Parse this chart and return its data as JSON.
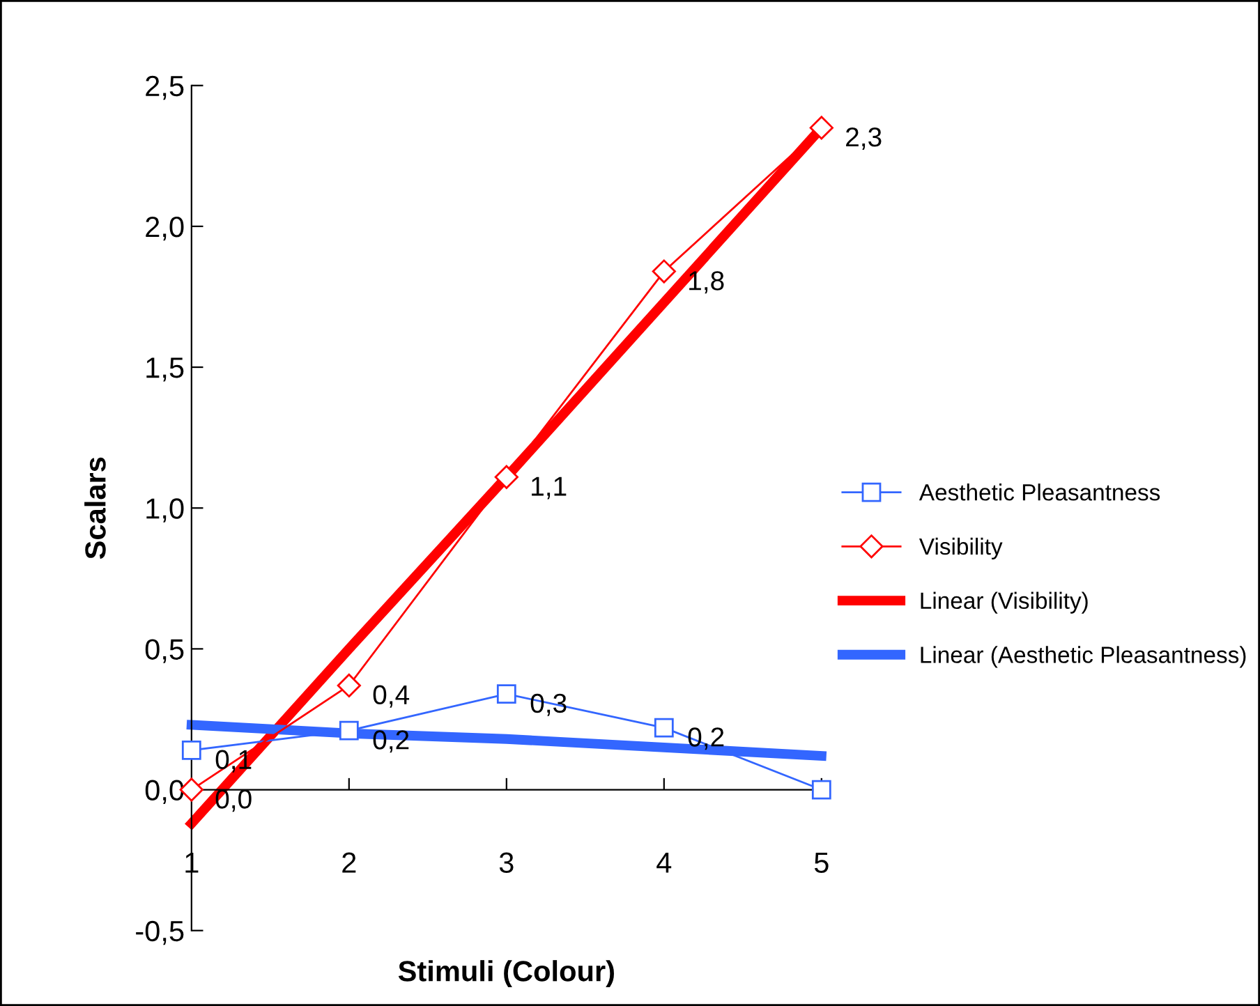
{
  "chart_data": {
    "type": "line",
    "xlabel": "Stimuli (Colour)",
    "ylabel": "Scalars",
    "x": [
      1,
      2,
      3,
      4,
      5
    ],
    "xlim": [
      1,
      5
    ],
    "xticks": [
      1,
      2,
      3,
      4,
      5
    ],
    "ylim": [
      -0.5,
      2.5
    ],
    "yticks": [
      {
        "value": -0.5,
        "label": "-0,5"
      },
      {
        "value": 0,
        "label": "0,0"
      },
      {
        "value": 0.5,
        "label": "0,5"
      },
      {
        "value": 1,
        "label": "1,0"
      },
      {
        "value": 1.5,
        "label": "1,5"
      },
      {
        "value": 2,
        "label": "2,0"
      },
      {
        "value": 2.5,
        "label": "2,5"
      }
    ],
    "legend": "right",
    "series": [
      {
        "name": "Aesthetic Pleasantness",
        "color": "#3366ff",
        "marker": "square",
        "values": [
          0.14,
          0.21,
          0.34,
          0.22,
          0.0
        ],
        "value_labels": [
          "0,1",
          "0,2",
          "0,3",
          "0,2",
          null
        ]
      },
      {
        "name": "Visibility",
        "color": "#ff0000",
        "marker": "diamond",
        "values": [
          0.0,
          0.37,
          1.11,
          1.84,
          2.35
        ],
        "value_labels": [
          "0,0",
          "0,4",
          "1,1",
          "1,8",
          "2,3"
        ]
      },
      {
        "name": "Linear (Visibility)",
        "type": "line",
        "color": "#ff0000",
        "marker": "none",
        "values": [
          -0.12,
          0.5,
          1.11,
          1.73,
          2.35
        ]
      },
      {
        "name": "Linear (Aesthetic Pleasantness)",
        "type": "line",
        "color": "#3366ff",
        "marker": "none",
        "values": [
          0.23,
          0.2,
          0.18,
          0.15,
          0.12
        ]
      }
    ]
  }
}
